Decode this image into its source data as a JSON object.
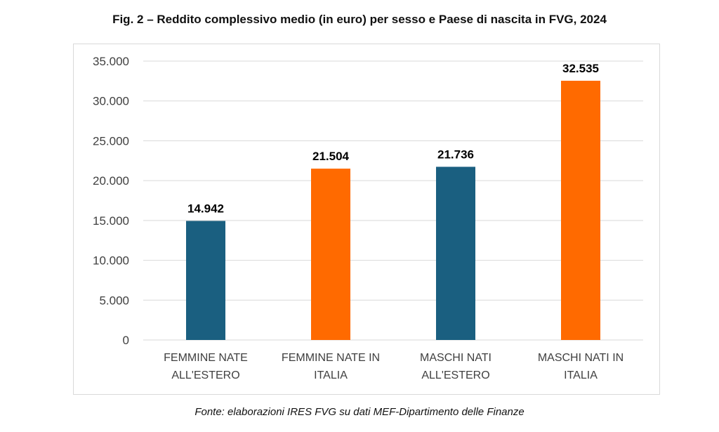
{
  "title": "Fig. 2 – Reddito complessivo medio (in euro) per sesso e Paese di nascita in FVG, 2024",
  "source": "Fonte: elaborazioni IRES FVG su dati MEF-Dipartimento delle Finanze",
  "chart_data": {
    "type": "bar",
    "title": "Fig. 2 – Reddito complessivo medio (in euro) per sesso e Paese di nascita in FVG, 2024",
    "categories": [
      [
        "FEMMINE NATE",
        "ALL'ESTERO"
      ],
      [
        "FEMMINE NATE IN",
        "ITALIA"
      ],
      [
        "MASCHI NATI",
        "ALL'ESTERO"
      ],
      [
        "MASCHI NATI IN",
        "ITALIA"
      ]
    ],
    "values": [
      14942,
      21504,
      21736,
      32535
    ],
    "value_labels": [
      "14.942",
      "21.504",
      "21.736",
      "32.535"
    ],
    "bar_colors": [
      "#1a5f80",
      "#ff6a00",
      "#1a5f80",
      "#ff6a00"
    ],
    "ylim": [
      0,
      35000
    ],
    "yticks": [
      0,
      5000,
      10000,
      15000,
      20000,
      25000,
      30000,
      35000
    ],
    "ytick_labels": [
      "0",
      "5.000",
      "10.000",
      "15.000",
      "20.000",
      "25.000",
      "30.000",
      "35.000"
    ],
    "grid": true,
    "grid_color": "#d9d9d9",
    "xlabel": "",
    "ylabel": ""
  }
}
